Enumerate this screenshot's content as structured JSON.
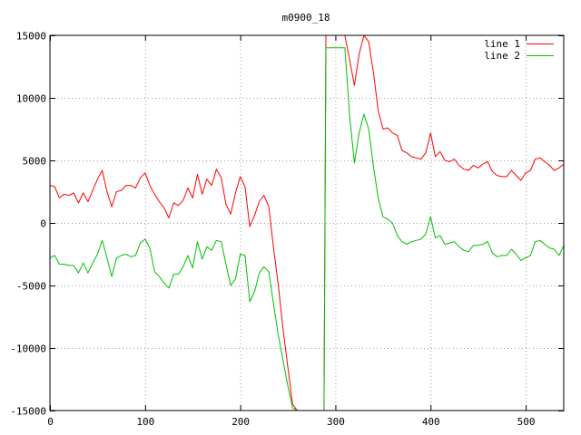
{
  "chart_data": {
    "type": "line",
    "title": "m0900_18",
    "xlabel": "",
    "ylabel": "",
    "xlim": [
      0,
      540
    ],
    "ylim": [
      -15000,
      15000
    ],
    "xticks": [
      0,
      100,
      200,
      300,
      400,
      500
    ],
    "yticks": [
      -15000,
      -10000,
      -5000,
      0,
      5000,
      10000,
      15000
    ],
    "grid": true,
    "legend_position": "top-right",
    "series": [
      {
        "name": "line 1",
        "color": "#ff0000",
        "x": [
          0,
          5,
          10,
          15,
          20,
          25,
          30,
          35,
          40,
          45,
          50,
          55,
          60,
          65,
          70,
          75,
          80,
          85,
          90,
          95,
          100,
          105,
          110,
          115,
          120,
          125,
          130,
          135,
          140,
          145,
          150,
          155,
          160,
          165,
          170,
          175,
          180,
          185,
          190,
          195,
          200,
          205,
          210,
          215,
          220,
          225,
          230,
          235,
          240,
          245,
          250,
          255,
          260,
          265,
          270,
          275,
          280,
          285,
          288,
          290,
          292,
          295,
          300,
          305,
          310,
          315,
          320,
          325,
          330,
          335,
          340,
          345,
          350,
          355,
          360,
          365,
          370,
          375,
          380,
          385,
          390,
          395,
          400,
          405,
          410,
          415,
          420,
          425,
          430,
          435,
          440,
          445,
          450,
          455,
          460,
          465,
          470,
          475,
          480,
          485,
          490,
          495,
          500,
          505,
          510,
          515,
          520,
          525,
          530,
          535,
          540
        ],
        "values": [
          3000,
          2900,
          2000,
          2300,
          2200,
          2400,
          1600,
          2400,
          1700,
          2600,
          3500,
          4200,
          2500,
          1300,
          2500,
          2600,
          3000,
          3000,
          2800,
          3600,
          4000,
          3000,
          2300,
          1700,
          1200,
          400,
          1600,
          1400,
          1800,
          2800,
          2000,
          3900,
          2300,
          3500,
          3000,
          4300,
          3600,
          1500,
          700,
          2400,
          3700,
          2900,
          -300,
          600,
          1700,
          2200,
          1300,
          -2000,
          -5000,
          -8500,
          -11500,
          -14500,
          -15000,
          -15000,
          -15000,
          -15000,
          -15000,
          -15000,
          -15000,
          15000,
          15000,
          15000,
          15000,
          15000,
          15000,
          13000,
          11000,
          13500,
          15000,
          14500,
          12000,
          9000,
          7500,
          7600,
          7200,
          7000,
          5800,
          5600,
          5300,
          5200,
          5100,
          5600,
          7200,
          5300,
          5700,
          5000,
          4900,
          5100,
          4600,
          4300,
          4200,
          4600,
          4400,
          4700,
          4900,
          4100,
          3800,
          3700,
          3700,
          4200,
          3800,
          3400,
          4000,
          4200,
          5100,
          5200,
          4900,
          4600,
          4200,
          4400,
          4700
        ]
      },
      {
        "name": "line 2",
        "color": "#00c000",
        "x": [
          0,
          5,
          10,
          15,
          20,
          25,
          30,
          35,
          40,
          45,
          50,
          55,
          60,
          65,
          70,
          75,
          80,
          85,
          90,
          95,
          100,
          105,
          110,
          115,
          120,
          125,
          130,
          135,
          140,
          145,
          150,
          155,
          160,
          165,
          170,
          175,
          180,
          185,
          190,
          195,
          200,
          205,
          210,
          215,
          220,
          225,
          230,
          235,
          240,
          245,
          250,
          255,
          260,
          265,
          270,
          275,
          280,
          285,
          288,
          290,
          292,
          295,
          300,
          305,
          310,
          315,
          320,
          325,
          330,
          335,
          340,
          345,
          350,
          355,
          360,
          365,
          370,
          375,
          380,
          385,
          390,
          395,
          400,
          405,
          410,
          415,
          420,
          425,
          430,
          435,
          440,
          445,
          450,
          455,
          460,
          465,
          470,
          475,
          480,
          485,
          490,
          495,
          500,
          505,
          510,
          515,
          520,
          525,
          530,
          535,
          540
        ],
        "values": [
          -2800,
          -2600,
          -3300,
          -3300,
          -3400,
          -3400,
          -4000,
          -3200,
          -4000,
          -3200,
          -2500,
          -1400,
          -2800,
          -4300,
          -2800,
          -2600,
          -2500,
          -2700,
          -2600,
          -1600,
          -1300,
          -2000,
          -3900,
          -4300,
          -4800,
          -5200,
          -4100,
          -4100,
          -3500,
          -2600,
          -3600,
          -1500,
          -2900,
          -1900,
          -2200,
          -1400,
          -1500,
          -3300,
          -5000,
          -4500,
          -2500,
          -2600,
          -6300,
          -5500,
          -4000,
          -3500,
          -3900,
          -6500,
          -9000,
          -11000,
          -13000,
          -14800,
          -15000,
          -15000,
          -15000,
          -15000,
          -15000,
          -15000,
          -15000,
          14000,
          14000,
          14000,
          14000,
          14000,
          14000,
          8500,
          4800,
          7200,
          8700,
          7500,
          4500,
          2000,
          500,
          300,
          0,
          -1000,
          -1500,
          -1700,
          -1500,
          -1400,
          -1300,
          -900,
          500,
          -1200,
          -1000,
          -1700,
          -1600,
          -1500,
          -1900,
          -2200,
          -2300,
          -1800,
          -1800,
          -1700,
          -1500,
          -2400,
          -2700,
          -2600,
          -2600,
          -2100,
          -2500,
          -3000,
          -2800,
          -2600,
          -1500,
          -1400,
          -1700,
          -2000,
          -2100,
          -2600,
          -1800
        ]
      }
    ]
  }
}
